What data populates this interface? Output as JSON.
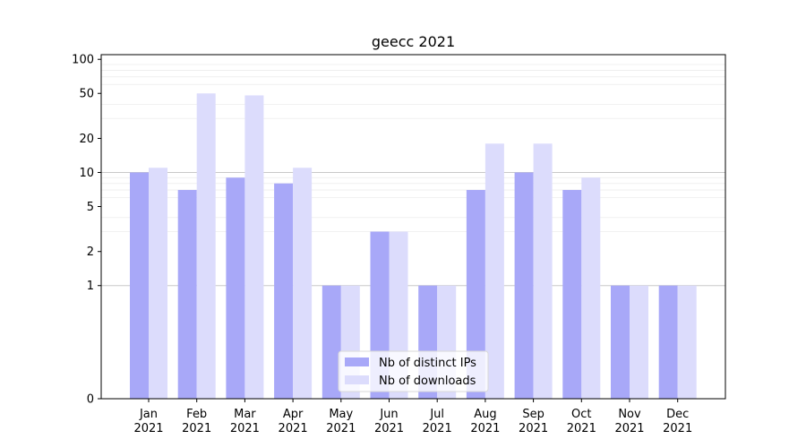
{
  "chart_data": {
    "type": "bar",
    "title": "geecc 2021",
    "xlabel": "",
    "ylabel": "",
    "yscale": "symlog",
    "ylim": [
      0,
      110
    ],
    "yticks": [
      0,
      1,
      2,
      5,
      10,
      20,
      50,
      100
    ],
    "ytick_labels": [
      "0",
      "1",
      "2",
      "5",
      "10",
      "20",
      "50",
      "100"
    ],
    "categories": [
      "Jan\n2021",
      "Feb\n2021",
      "Mar\n2021",
      "Apr\n2021",
      "May\n2021",
      "Jun\n2021",
      "Jul\n2021",
      "Aug\n2021",
      "Sep\n2021",
      "Oct\n2021",
      "Nov\n2021",
      "Dec\n2021"
    ],
    "series": [
      {
        "name": "Nb of distinct IPs",
        "color": "#a8a8f8",
        "values": [
          10,
          7,
          9,
          8,
          1,
          3,
          1,
          7,
          10,
          7,
          1,
          1
        ]
      },
      {
        "name": "Nb of downloads",
        "color": "#dcdcfc",
        "values": [
          11,
          50,
          48,
          11,
          1,
          3,
          1,
          18,
          18,
          9,
          1,
          1
        ]
      }
    ],
    "grid": true,
    "legend_position": "bottom-center"
  }
}
